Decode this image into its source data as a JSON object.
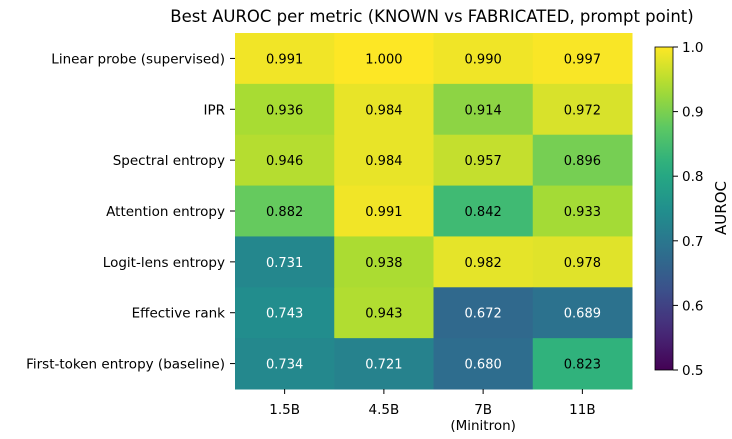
{
  "chart_data": {
    "type": "heatmap",
    "title": "Best AUROC per metric (KNOWN vs FABRICATED, prompt point)",
    "xlabel": "",
    "ylabel": "",
    "x_categories": [
      "1.5B",
      "4.5B",
      "7B\n(Minitron)",
      "11B"
    ],
    "y_categories": [
      "Linear probe (supervised)",
      "IPR",
      "Spectral entropy",
      "Attention entropy",
      "Logit-lens entropy",
      "Effective rank",
      "First-token entropy (baseline)"
    ],
    "values": [
      [
        0.991,
        1.0,
        0.99,
        0.997
      ],
      [
        0.936,
        0.984,
        0.914,
        0.972
      ],
      [
        0.946,
        0.984,
        0.957,
        0.896
      ],
      [
        0.882,
        0.991,
        0.842,
        0.933
      ],
      [
        0.731,
        0.938,
        0.982,
        0.978
      ],
      [
        0.743,
        0.943,
        0.672,
        0.689
      ],
      [
        0.734,
        0.721,
        0.68,
        0.823
      ]
    ],
    "colorbar": {
      "label": "AUROC",
      "range": [
        0.5,
        1.0
      ],
      "ticks": [
        "0.5",
        "0.6",
        "0.7",
        "0.8",
        "0.9",
        "1.0"
      ],
      "colormap": "viridis"
    }
  }
}
